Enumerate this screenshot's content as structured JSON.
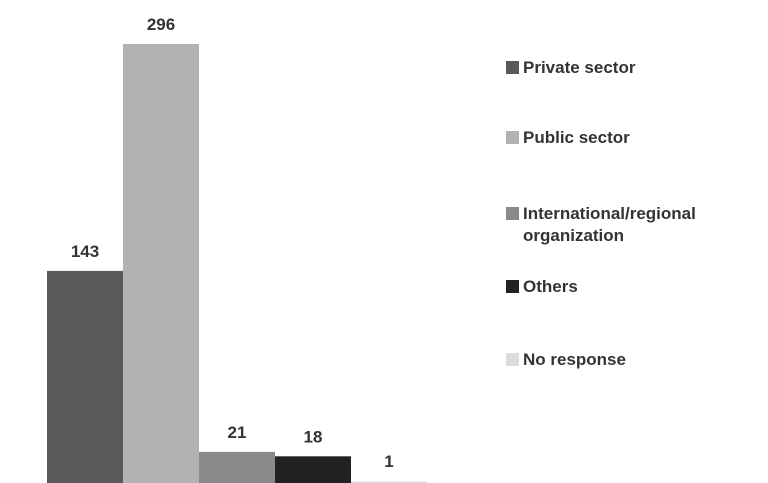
{
  "chart_data": {
    "type": "bar",
    "title": "",
    "xlabel": "",
    "ylabel": "",
    "ylim": [
      0,
      296
    ],
    "grid": false,
    "legend_position": "right",
    "categories": [
      "Private sector",
      "Public sector",
      "International/regional organization",
      "Others",
      "No response"
    ],
    "values": [
      143,
      296,
      21,
      18,
      1
    ],
    "data_labels": [
      "143",
      "296",
      "21",
      "18",
      "1"
    ],
    "colors": [
      "#5a5a5a",
      "#b2b2b2",
      "#8a8a8a",
      "#222222",
      "#dcdcdc"
    ]
  },
  "legend": {
    "items": [
      {
        "label": "Private sector",
        "color": "#5a5a5a"
      },
      {
        "label": "Public sector",
        "color": "#b2b2b2"
      },
      {
        "label": "International/regional organization",
        "color": "#8a8a8a"
      },
      {
        "label": "Others",
        "color": "#222222"
      },
      {
        "label": "No response",
        "color": "#dcdcdc"
      }
    ]
  }
}
